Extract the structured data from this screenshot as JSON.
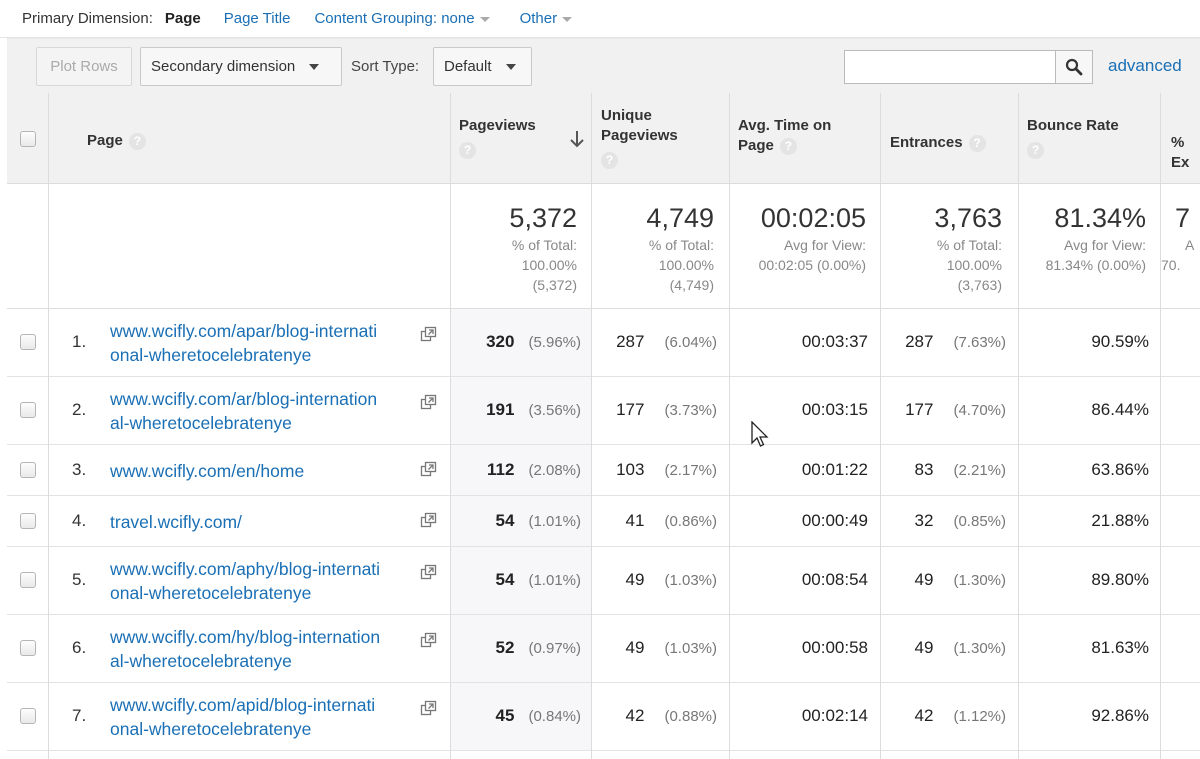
{
  "dimension_bar": {
    "label": "Primary Dimension:",
    "active": "Page",
    "options": [
      "Page Title",
      "Content Grouping: none",
      "Other"
    ]
  },
  "toolbar": {
    "plot_rows": "Plot Rows",
    "secondary_dimension": "Secondary dimension",
    "sort_type_label": "Sort Type:",
    "sort_type_value": "Default",
    "search_value": "",
    "advanced": "advanced",
    "search_icon": "magnifier-icon"
  },
  "headers": {
    "page": "Page",
    "pageviews": "Pageviews",
    "unique_pageviews_1": "Unique",
    "unique_pageviews_2": "Pageviews",
    "avg_time_1": "Avg. Time on",
    "avg_time_2": "Page",
    "entrances": "Entrances",
    "bounce_rate": "Bounce Rate",
    "exit": "% Ex",
    "help": "?"
  },
  "totals": {
    "pageviews": {
      "value": "5,372",
      "l1": "% of Total:",
      "l2": "100.00%",
      "l3": "(5,372)"
    },
    "unique": {
      "value": "4,749",
      "l1": "% of Total:",
      "l2": "100.00%",
      "l3": "(4,749)"
    },
    "avg_time": {
      "value": "00:02:05",
      "l1": "Avg for View:",
      "l2": "00:02:05 (0.00%)"
    },
    "entrances": {
      "value": "3,763",
      "l1": "% of Total:",
      "l2": "100.00%",
      "l3": "(3,763)"
    },
    "bounce": {
      "value": "81.34%",
      "l1": "Avg for View:",
      "l2": "81.34% (0.00%)"
    },
    "exit": {
      "value": "7",
      "l1": "A",
      "l2": "70."
    }
  },
  "rows": [
    {
      "num": "1.",
      "page1": "www.wcifly.com/apar/blog-internati",
      "page2": "onal-wheretocelebratenye",
      "pv": "320",
      "pv_pct": "(5.96%)",
      "upv": "287",
      "upv_pct": "(6.04%)",
      "time": "00:03:37",
      "ent": "287",
      "ent_pct": "(7.63%)",
      "bounce": "90.59%"
    },
    {
      "num": "2.",
      "page1": "www.wcifly.com/ar/blog-internation",
      "page2": "al-wheretocelebratenye",
      "pv": "191",
      "pv_pct": "(3.56%)",
      "upv": "177",
      "upv_pct": "(3.73%)",
      "time": "00:03:15",
      "ent": "177",
      "ent_pct": "(4.70%)",
      "bounce": "86.44%"
    },
    {
      "num": "3.",
      "page1": "www.wcifly.com/en/home",
      "page2": "",
      "pv": "112",
      "pv_pct": "(2.08%)",
      "upv": "103",
      "upv_pct": "(2.17%)",
      "time": "00:01:22",
      "ent": "83",
      "ent_pct": "(2.21%)",
      "bounce": "63.86%"
    },
    {
      "num": "4.",
      "page1": "travel.wcifly.com/",
      "page2": "",
      "pv": "54",
      "pv_pct": "(1.01%)",
      "upv": "41",
      "upv_pct": "(0.86%)",
      "time": "00:00:49",
      "ent": "32",
      "ent_pct": "(0.85%)",
      "bounce": "21.88%"
    },
    {
      "num": "5.",
      "page1": "www.wcifly.com/aphy/blog-internati",
      "page2": "onal-wheretocelebratenye",
      "pv": "54",
      "pv_pct": "(1.01%)",
      "upv": "49",
      "upv_pct": "(1.03%)",
      "time": "00:08:54",
      "ent": "49",
      "ent_pct": "(1.30%)",
      "bounce": "89.80%"
    },
    {
      "num": "6.",
      "page1": "www.wcifly.com/hy/blog-internation",
      "page2": "al-wheretocelebratenye",
      "pv": "52",
      "pv_pct": "(0.97%)",
      "upv": "49",
      "upv_pct": "(1.03%)",
      "time": "00:00:58",
      "ent": "49",
      "ent_pct": "(1.30%)",
      "bounce": "81.63%"
    },
    {
      "num": "7.",
      "page1": "www.wcifly.com/apid/blog-internati",
      "page2": "onal-wheretocelebratenye",
      "pv": "45",
      "pv_pct": "(0.84%)",
      "upv": "42",
      "upv_pct": "(0.88%)",
      "time": "00:02:14",
      "ent": "42",
      "ent_pct": "(1.12%)",
      "bounce": "92.86%"
    }
  ],
  "colors": {
    "link": "#1a6fb5",
    "header_bg": "#f1f1f1"
  }
}
